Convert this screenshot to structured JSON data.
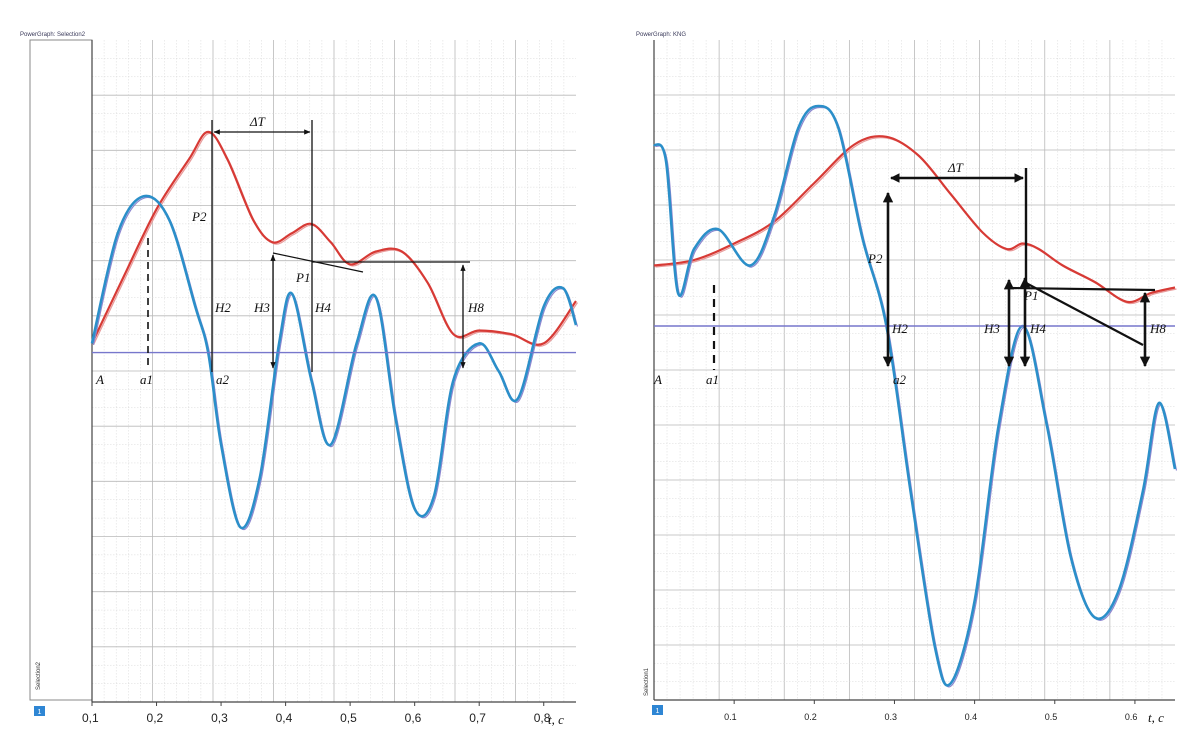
{
  "panels": [
    {
      "window_title": "PowerGraph: Selection2",
      "side_label": "Selection2",
      "badge": "1",
      "time_unit_label": "t, c",
      "chart_data": {
        "type": "line",
        "xlim": [
          0.1,
          0.85
        ],
        "ylim": [
          -1.9,
          1.7
        ],
        "grid": true,
        "x_ticks": [
          0.1,
          0.2,
          0.3,
          0.4,
          0.5,
          0.6,
          0.7,
          0.8
        ],
        "x_tick_labels": [
          "0,1",
          "0,2",
          "0,3",
          "0,4",
          "0,5",
          "0,6",
          "0,7",
          "0,8"
        ],
        "xlabel": "t, c",
        "series": [
          {
            "name": "",
            "color": "#d73a35",
            "x": [
              0.1,
              0.15,
              0.2,
              0.25,
              0.28,
              0.31,
              0.35,
              0.38,
              0.41,
              0.44,
              0.47,
              0.5,
              0.54,
              0.58,
              0.62,
              0.66,
              0.7,
              0.75,
              0.8,
              0.85
            ],
            "y": [
              0.05,
              0.42,
              0.78,
              1.05,
              1.2,
              1.05,
              0.72,
              0.6,
              0.65,
              0.7,
              0.6,
              0.48,
              0.55,
              0.55,
              0.38,
              0.1,
              0.12,
              0.1,
              0.05,
              0.28
            ]
          },
          {
            "name": "",
            "color": "#2b8fc9",
            "x": [
              0.1,
              0.14,
              0.18,
              0.22,
              0.26,
              0.28,
              0.3,
              0.33,
              0.36,
              0.39,
              0.41,
              0.44,
              0.47,
              0.51,
              0.54,
              0.57,
              0.6,
              0.63,
              0.66,
              0.7,
              0.73,
              0.76,
              0.8,
              0.83,
              0.85
            ],
            "y": [
              0.05,
              0.65,
              0.85,
              0.72,
              0.25,
              0.0,
              -0.5,
              -0.95,
              -0.68,
              0.05,
              0.32,
              -0.15,
              -0.5,
              0.05,
              0.3,
              -0.35,
              -0.85,
              -0.78,
              -0.15,
              0.05,
              -0.1,
              -0.25,
              0.25,
              0.35,
              0.15
            ]
          },
          {
            "name": "",
            "color": "#7777cc",
            "x": [
              0.1,
              0.85
            ],
            "y": [
              0,
              0
            ]
          }
        ],
        "annotations": [
          "A",
          "a1",
          "a2",
          "ΔT",
          "P2",
          "P1",
          "H2",
          "H3",
          "H4",
          "H8"
        ]
      }
    },
    {
      "window_title": "PowerGraph: KNG",
      "side_label": "Selection1",
      "badge": "1",
      "time_unit_label": "t, c",
      "chart_data": {
        "type": "line",
        "xlim": [
          0.0,
          0.65
        ],
        "ylim": [
          -3.4,
          2.6
        ],
        "grid": true,
        "x_ticks": [
          0.1,
          0.2,
          0.3,
          0.4,
          0.5,
          0.6
        ],
        "x_tick_labels": [
          "0.1",
          "0.2",
          "0.3",
          "0.4",
          "0.5",
          "0.6"
        ],
        "xlabel": "t, c",
        "series": [
          {
            "name": "",
            "color": "#d73a35",
            "x": [
              0.0,
              0.05,
              0.1,
              0.15,
              0.2,
              0.25,
              0.29,
              0.33,
              0.37,
              0.41,
              0.44,
              0.46,
              0.48,
              0.51,
              0.55,
              0.59,
              0.62,
              0.65
            ],
            "y": [
              0.55,
              0.6,
              0.75,
              0.95,
              1.3,
              1.65,
              1.72,
              1.55,
              1.2,
              0.85,
              0.7,
              0.75,
              0.7,
              0.55,
              0.4,
              0.22,
              0.3,
              0.35
            ]
          },
          {
            "name": "",
            "color": "#2b8fc9",
            "x": [
              0.0,
              0.015,
              0.03,
              0.05,
              0.08,
              0.12,
              0.15,
              0.18,
              0.205,
              0.23,
              0.26,
              0.29,
              0.32,
              0.35,
              0.37,
              0.4,
              0.43,
              0.46,
              0.49,
              0.52,
              0.55,
              0.58,
              0.61,
              0.63,
              0.65
            ],
            "y": [
              1.65,
              1.5,
              0.3,
              0.7,
              0.88,
              0.55,
              1.0,
              1.8,
              2.0,
              1.8,
              0.8,
              0.0,
              -1.5,
              -2.9,
              -3.25,
              -2.5,
              -0.9,
              0.0,
              -0.9,
              -2.1,
              -2.65,
              -2.4,
              -1.5,
              -0.7,
              -1.3
            ]
          },
          {
            "name": "",
            "color": "#7777cc",
            "x": [
              0.0,
              0.65
            ],
            "y": [
              0,
              0
            ]
          }
        ],
        "annotations": [
          "A",
          "a1",
          "a2",
          "ΔT",
          "P2",
          "P1",
          "H2",
          "H3",
          "H4",
          "H8"
        ]
      }
    }
  ],
  "annotation_labels": {
    "A": "A",
    "a1": "a1",
    "a2": "a2",
    "dT": "ΔT",
    "P1": "P1",
    "P2": "P2",
    "H2": "H2",
    "H3": "H3",
    "H4": "H4",
    "H8": "H8"
  }
}
